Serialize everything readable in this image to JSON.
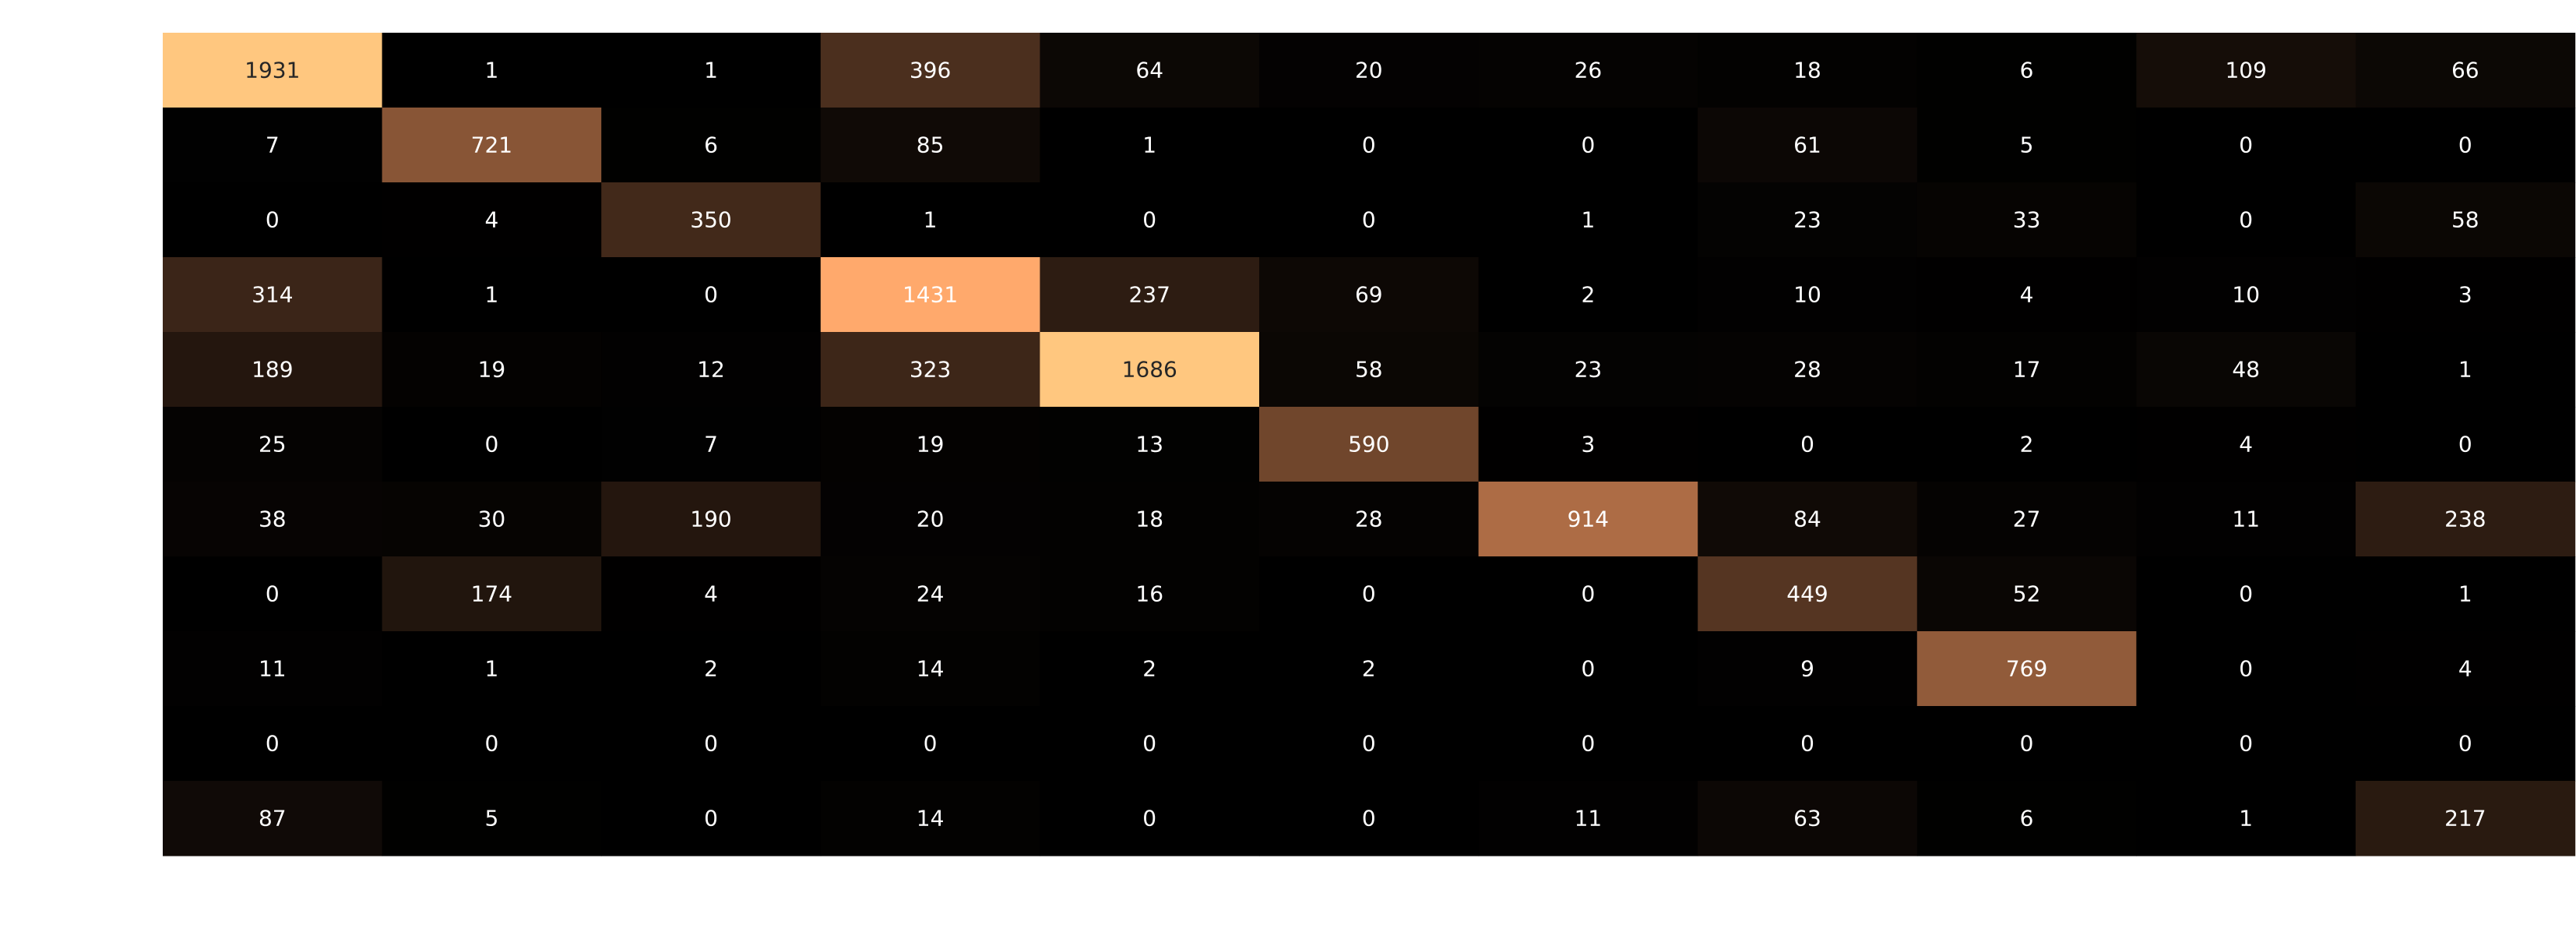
{
  "chart_data": {
    "type": "heatmap",
    "title": "",
    "xlabel": "",
    "ylabel": "",
    "colormap": "copper",
    "color_range": [
      0,
      1686
    ],
    "colors": {
      "low": "#000000",
      "high": "#ffc77f",
      "label_light": "#ffffff",
      "label_dark": "#262626"
    },
    "rows": [
      [
        1931,
        1,
        1,
        396,
        64,
        20,
        26,
        18,
        6,
        109,
        66
      ],
      [
        7,
        721,
        6,
        85,
        1,
        0,
        0,
        61,
        5,
        0,
        0
      ],
      [
        0,
        4,
        350,
        1,
        0,
        0,
        1,
        23,
        33,
        0,
        58
      ],
      [
        314,
        1,
        0,
        1431,
        237,
        69,
        2,
        10,
        4,
        10,
        3
      ],
      [
        189,
        19,
        12,
        323,
        1686,
        58,
        23,
        28,
        17,
        48,
        1
      ],
      [
        25,
        0,
        7,
        19,
        13,
        590,
        3,
        0,
        2,
        4,
        0
      ],
      [
        38,
        30,
        190,
        20,
        18,
        28,
        914,
        84,
        27,
        11,
        238
      ],
      [
        0,
        174,
        4,
        24,
        16,
        0,
        0,
        449,
        52,
        0,
        1
      ],
      [
        11,
        1,
        2,
        14,
        2,
        2,
        0,
        9,
        769,
        0,
        4
      ],
      [
        0,
        0,
        0,
        0,
        0,
        0,
        0,
        0,
        0,
        0,
        0
      ],
      [
        87,
        5,
        0,
        14,
        0,
        0,
        11,
        63,
        6,
        1,
        217
      ]
    ]
  }
}
